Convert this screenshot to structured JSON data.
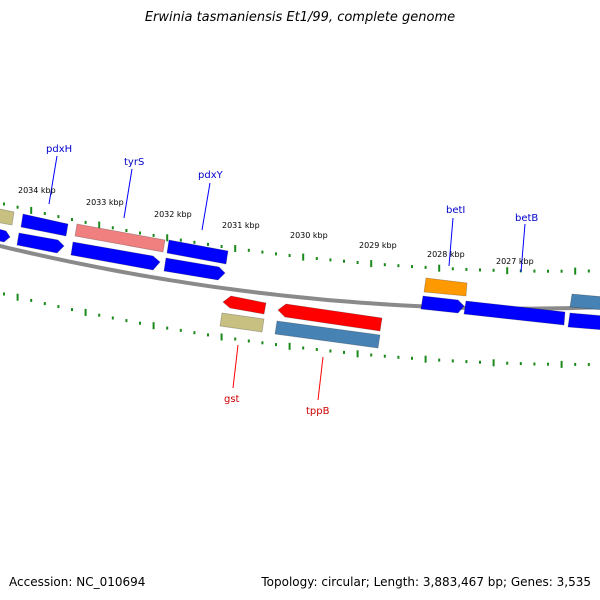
{
  "title": "Erwinia tasmaniensis Et1/99, complete genome",
  "footer": {
    "accession": "Accession: NC_010694",
    "summary": "Topology: circular; Length: 3,883,467 bp; Genes: 3,535"
  },
  "colors": {
    "forward_gene": "#0000ff",
    "reverse_gene": "#ff0000",
    "forward_label": "#0000cc",
    "reverse_label": "#cc0000",
    "tick": "#1a8a1a",
    "backbone": "#8a8a8a"
  },
  "scale": {
    "unit": "kbp",
    "labels": [
      "2034 kbp",
      "2033 kbp",
      "2032 kbp",
      "2031 kbp",
      "2030 kbp",
      "2029 kbp",
      "2028 kbp",
      "2027 kbp"
    ]
  },
  "gene_labels": {
    "forward": [
      "pdxH",
      "tyrS",
      "pdxY",
      "betI",
      "betB"
    ],
    "reverse": [
      "gst",
      "tppB"
    ]
  },
  "feature_colors": {
    "blue": "#0000ff",
    "red": "#ff0000",
    "pink": "#f08080",
    "orange": "#ff9900",
    "khaki": "#c8c080",
    "steel": "#4682b4"
  }
}
